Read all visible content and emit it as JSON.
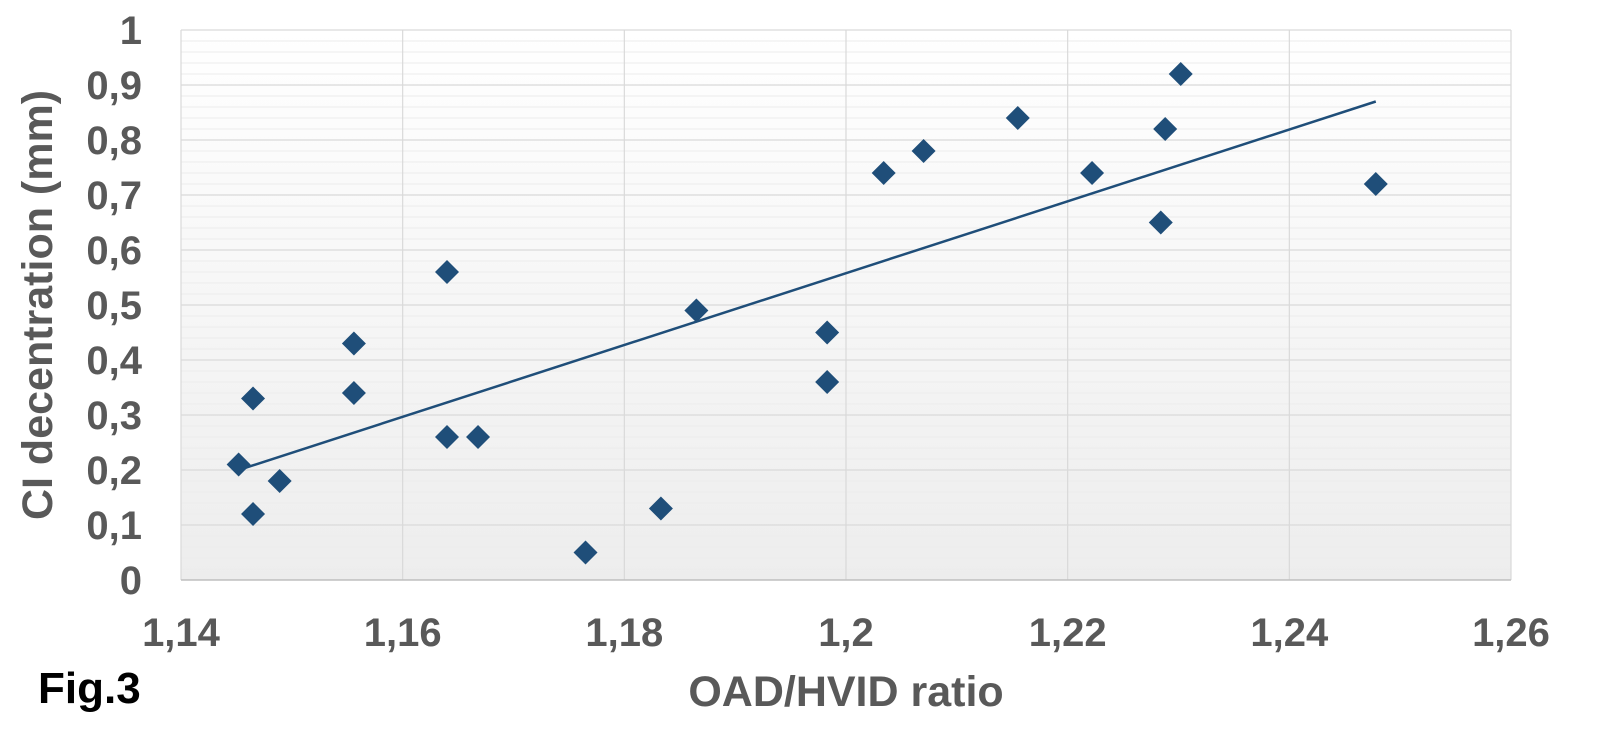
{
  "figure_label": "Fig.3",
  "colors": {
    "marker": "#1F4E79",
    "trendline": "#1F4E79",
    "text": "#595959",
    "grid": "#D9D9D9"
  },
  "chart_data": {
    "type": "scatter",
    "xlabel": "OAD/HVID ratio",
    "ylabel": "CI decentration (mm)",
    "xlim": [
      1.14,
      1.26
    ],
    "ylim": [
      0,
      1
    ],
    "x_ticks": [
      "1,14",
      "1,16",
      "1,18",
      "1,2",
      "1,22",
      "1,24",
      "1,26"
    ],
    "y_ticks": [
      "0",
      "0,1",
      "0,2",
      "0,3",
      "0,4",
      "0,5",
      "0,6",
      "0,7",
      "0,8",
      "0,9",
      "1"
    ],
    "grid": true,
    "legend": "none",
    "marker": "diamond",
    "points": [
      {
        "x": 1.1452,
        "y": 0.21
      },
      {
        "x": 1.1465,
        "y": 0.33
      },
      {
        "x": 1.1465,
        "y": 0.12
      },
      {
        "x": 1.1489,
        "y": 0.18
      },
      {
        "x": 1.1556,
        "y": 0.43
      },
      {
        "x": 1.1556,
        "y": 0.34
      },
      {
        "x": 1.164,
        "y": 0.56
      },
      {
        "x": 1.164,
        "y": 0.26
      },
      {
        "x": 1.1668,
        "y": 0.26
      },
      {
        "x": 1.1765,
        "y": 0.05
      },
      {
        "x": 1.1833,
        "y": 0.13
      },
      {
        "x": 1.1865,
        "y": 0.49
      },
      {
        "x": 1.1983,
        "y": 0.45
      },
      {
        "x": 1.1983,
        "y": 0.36
      },
      {
        "x": 1.2034,
        "y": 0.74
      },
      {
        "x": 1.207,
        "y": 0.78
      },
      {
        "x": 1.2155,
        "y": 0.84
      },
      {
        "x": 1.2222,
        "y": 0.74
      },
      {
        "x": 1.2284,
        "y": 0.65
      },
      {
        "x": 1.2288,
        "y": 0.82
      },
      {
        "x": 1.2302,
        "y": 0.92
      },
      {
        "x": 1.2478,
        "y": 0.72
      }
    ],
    "trendline": {
      "x": [
        1.1452,
        1.2478
      ],
      "y": [
        0.2,
        0.87
      ]
    }
  }
}
